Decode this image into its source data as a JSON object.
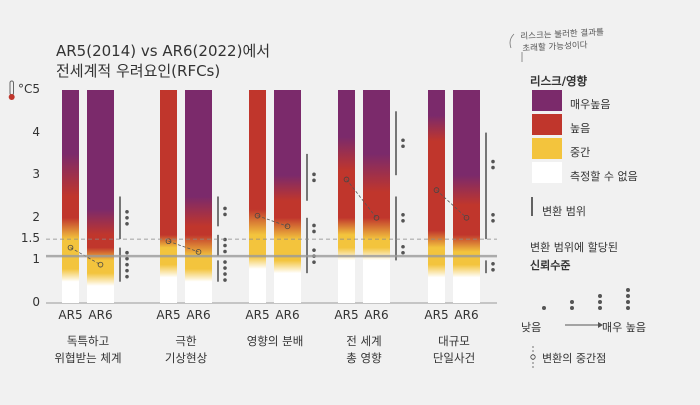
{
  "title_line1": "AR5(2014) vs AR6(2022)에서",
  "title_line2": "전세계적 우려요인(RFCs)",
  "annotation_note": [
    "리스크는 불러한 결과를",
    "초래할 가능성이다"
  ],
  "legend": {
    "title": "리스크/영향",
    "levels": [
      {
        "label": "매우높음",
        "color": "#7b2a6b"
      },
      {
        "label": "높음",
        "color": "#c0362c"
      },
      {
        "label": "중간",
        "color": "#f3c43d"
      },
      {
        "label": "측정할 수 없음",
        "color": "#ffffff"
      }
    ],
    "range_label": "변환 범위",
    "confidence_title_line1": "변환 범위에 할당된",
    "confidence_title_line2": "신뢰수준",
    "confidence_low": "낮음",
    "confidence_high": "매우 높음",
    "midpoint_label": "변환의 중간점"
  },
  "chart_data": {
    "type": "bar",
    "ylabel": "°C",
    "ylim": [
      0,
      5
    ],
    "yticks": [
      0,
      1,
      1.5,
      2,
      3,
      4,
      5
    ],
    "reference_lines": [
      1.1,
      1.5
    ],
    "categories": [
      {
        "name_line1": "독특하고",
        "name_line2": "위협받는 체계",
        "ar5": {
          "label": "AR5",
          "white_top": 0.5,
          "yellow_full": 0.8,
          "red_start": 1.5,
          "red_full": 2.0,
          "purple_start": 2.5,
          "purple_full": 3.5,
          "midpoint": 1.3
        },
        "ar6": {
          "label": "AR6",
          "white_top": 0.4,
          "yellow_full": 0.7,
          "red_start": 1.0,
          "red_full": 1.3,
          "purple_start": 1.6,
          "purple_full": 2.2,
          "midpoint": 0.9
        },
        "transitions": [
          {
            "low": 0.5,
            "high": 1.3,
            "confidence": 5
          },
          {
            "low": 1.5,
            "high": 2.5,
            "confidence": 3
          }
        ]
      },
      {
        "name_line1": "극한",
        "name_line2": "기상현상",
        "ar5": {
          "label": "AR5",
          "white_top": 0.6,
          "yellow_full": 0.9,
          "red_start": 1.3,
          "red_full": 1.6,
          "purple_start": 0,
          "purple_full": 0,
          "midpoint": 1.45
        },
        "ar6": {
          "label": "AR6",
          "white_top": 0.5,
          "yellow_full": 0.8,
          "red_start": 1.1,
          "red_full": 1.6,
          "purple_start": 1.8,
          "purple_full": 2.5,
          "midpoint": 1.2
        },
        "transitions": [
          {
            "low": 0.5,
            "high": 1.0,
            "confidence": 4
          },
          {
            "low": 1.1,
            "high": 1.6,
            "confidence": 3
          },
          {
            "low": 1.8,
            "high": 2.5,
            "confidence": 2
          }
        ]
      },
      {
        "name_line1": "영향의 분배",
        "name_line2": "",
        "ar5": {
          "label": "AR5",
          "white_top": 0.8,
          "yellow_full": 1.1,
          "red_start": 1.6,
          "red_full": 2.2,
          "purple_start": 0,
          "purple_full": 0,
          "midpoint": 2.05
        },
        "ar6": {
          "label": "AR6",
          "white_top": 0.7,
          "yellow_full": 1.0,
          "red_start": 1.5,
          "red_full": 2.0,
          "purple_start": 2.4,
          "purple_full": 3.0,
          "midpoint": 1.8
        },
        "transitions": [
          {
            "low": 0.7,
            "high": 1.5,
            "confidence": 3
          },
          {
            "low": 1.5,
            "high": 2.0,
            "confidence": 2
          },
          {
            "low": 2.4,
            "high": 3.5,
            "confidence": 2
          }
        ]
      },
      {
        "name_line1": "전 세계",
        "name_line2": "총 영향",
        "ar5": {
          "label": "AR5",
          "white_top": 1.0,
          "yellow_full": 1.3,
          "red_start": 1.6,
          "red_full": 2.0,
          "purple_start": 3.1,
          "purple_full": 3.9,
          "midpoint": 2.9
        },
        "ar6": {
          "label": "AR6",
          "white_top": 1.0,
          "yellow_full": 1.3,
          "red_start": 1.5,
          "red_full": 2.0,
          "purple_start": 2.6,
          "purple_full": 3.5,
          "midpoint": 2.0
        },
        "transitions": [
          {
            "low": 1.0,
            "high": 1.5,
            "confidence": 2
          },
          {
            "low": 1.5,
            "high": 2.5,
            "confidence": 2
          },
          {
            "low": 3.0,
            "high": 4.5,
            "confidence": 2
          }
        ]
      },
      {
        "name_line1": "대규모",
        "name_line2": "단일사건",
        "ar5": {
          "label": "AR5",
          "white_top": 0.6,
          "yellow_full": 0.9,
          "red_start": 1.3,
          "red_full": 1.7,
          "purple_start": 3.8,
          "purple_full": 4.4,
          "midpoint": 2.65
        },
        "ar6": {
          "label": "AR6",
          "white_top": 0.6,
          "yellow_full": 0.9,
          "red_start": 1.2,
          "red_full": 1.6,
          "purple_start": 2.3,
          "purple_full": 3.0,
          "midpoint": 2.0
        },
        "transitions": [
          {
            "low": 0.7,
            "high": 1.0,
            "confidence": 2
          },
          {
            "low": 1.5,
            "high": 2.5,
            "confidence": 2
          },
          {
            "low": 2.5,
            "high": 4.0,
            "confidence": 2
          }
        ]
      }
    ]
  }
}
